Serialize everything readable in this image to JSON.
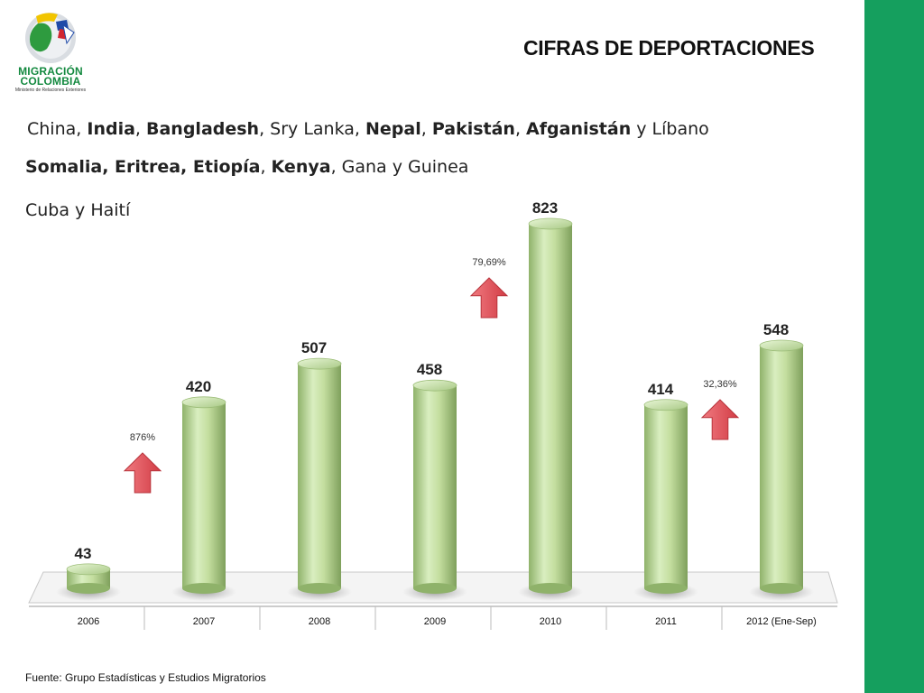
{
  "title": "CIFRAS DE DEPORTACIONES",
  "logo": {
    "line1": "MIGRACIÓN",
    "line2": "COLOMBIA",
    "ministry": "Ministerio de Relaciones Exteriores"
  },
  "countries": {
    "line1": [
      {
        "t": "China",
        "b": false
      },
      {
        "t": ", ",
        "b": false
      },
      {
        "t": "India",
        "b": true
      },
      {
        "t": ", ",
        "b": false
      },
      {
        "t": "Bangladesh",
        "b": true
      },
      {
        "t": ", Sry Lanka, ",
        "b": false
      },
      {
        "t": "Nepal",
        "b": true
      },
      {
        "t": ", ",
        "b": false
      },
      {
        "t": "Pakistán",
        "b": true
      },
      {
        "t": ", ",
        "b": false
      },
      {
        "t": "Afganistán",
        "b": true
      },
      {
        "t": " y Líbano",
        "b": false
      }
    ],
    "line2": [
      {
        "t": "Somalia, Eritrea, Etiopía",
        "b": true
      },
      {
        "t": ", ",
        "b": false
      },
      {
        "t": "Kenya",
        "b": true
      },
      {
        "t": ", Gana y Guinea",
        "b": false
      }
    ],
    "line3": [
      {
        "t": "Cuba y Haití",
        "b": false
      }
    ]
  },
  "source": "Fuente: Grupo Estadísticas y Estudios Migratorios",
  "colors": {
    "bar": "#b9d59a",
    "band": "#159f5e",
    "arrow": "#e0505a"
  },
  "chart_data": {
    "type": "bar",
    "categories": [
      "2006",
      "2007",
      "2008",
      "2009",
      "2010",
      "2011",
      "2012 (Ene-Sep)"
    ],
    "values": [
      43,
      420,
      507,
      458,
      823,
      414,
      548
    ],
    "ylim": [
      0,
      823
    ],
    "grid": false,
    "annotations": [
      {
        "text": "876%",
        "category": "2007",
        "arrow": "up"
      },
      {
        "text": "79,69%",
        "category": "2010",
        "arrow": "up"
      },
      {
        "text": "32,36%",
        "category": "2012 (Ene-Sep)",
        "arrow": "up"
      }
    ]
  }
}
